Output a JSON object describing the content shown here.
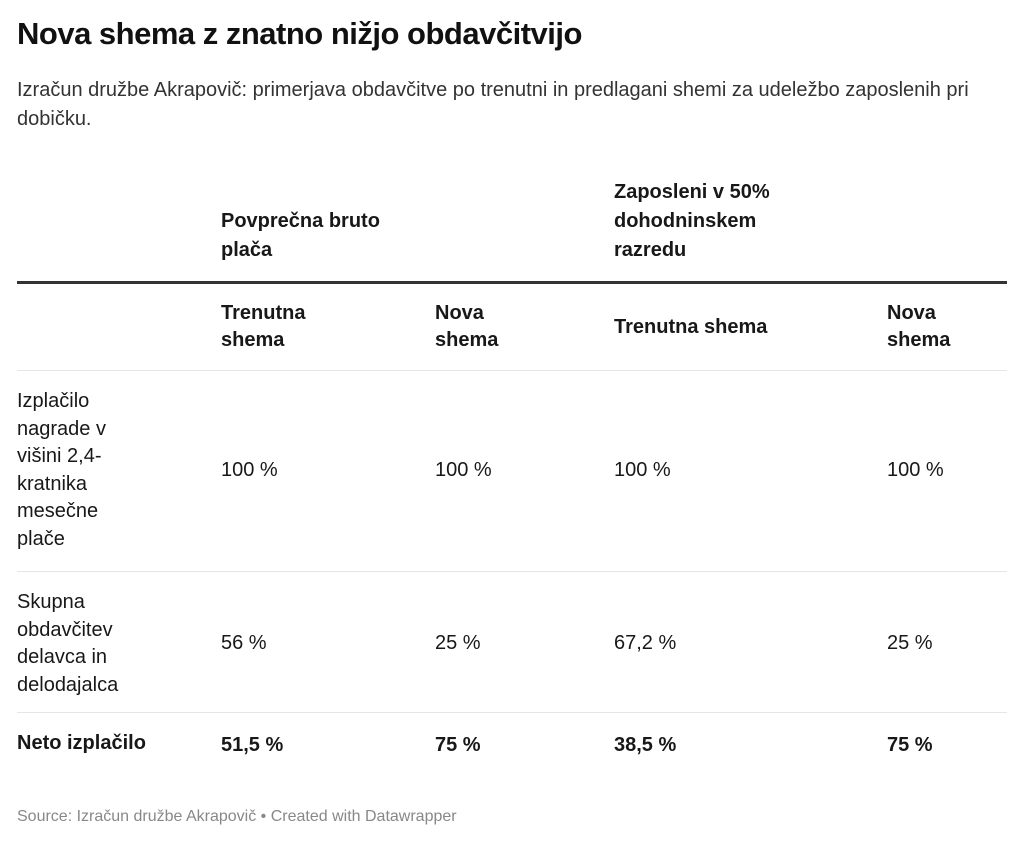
{
  "title": "Nova shema z znatno nižjo obdavčitvijo",
  "subtitle": "Izračun družbe Akrapovič: primerjava obdavčitve po trenutni in predlagani shemi za udeležbo zaposlenih pri dobičku.",
  "group_headers": [
    {
      "label": "Povprečna bruto plača"
    },
    {
      "label": "Zaposleni v 50% dohodninskem razredu"
    }
  ],
  "column_headers": [
    "Trenutna shema",
    "Nova shema",
    "Trenutna shema",
    "Nova shema"
  ],
  "rows": [
    {
      "label": "Izplačilo nagrade v višini 2,4-kratnika mesečne plače",
      "values": [
        "100 %",
        "100 %",
        "100 %",
        "100 %"
      ],
      "bold": false
    },
    {
      "label": "Skupna obdavčitev delavca in delodajalca",
      "values": [
        "56 %",
        "25 %",
        "67,2 %",
        "25 %"
      ],
      "bold": false
    },
    {
      "label": "Neto izplačilo",
      "values": [
        "51,5 %",
        "75 %",
        "38,5 %",
        "75 %"
      ],
      "bold": true
    }
  ],
  "footer": "Source: Izračun družbe Akrapovič • Created with Datawrapper",
  "colors": {
    "text": "#181818",
    "rule_thick": "#333333",
    "rule_thin": "#e6e6e6",
    "footer": "#888888"
  }
}
